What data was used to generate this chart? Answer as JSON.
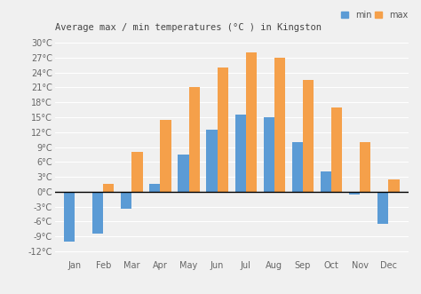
{
  "title": "Average max / min temperatures (°C ) in Kingston",
  "months": [
    "Jan",
    "Feb",
    "Mar",
    "Apr",
    "May",
    "Jun",
    "Jul",
    "Aug",
    "Sep",
    "Oct",
    "Nov",
    "Dec"
  ],
  "min_temps": [
    -10,
    -8.5,
    -3.5,
    1.5,
    7.5,
    12.5,
    15.5,
    15,
    10,
    4,
    -0.5,
    -6.5
  ],
  "max_temps": [
    0,
    1.5,
    8,
    14.5,
    21,
    25,
    28,
    27,
    22.5,
    17,
    10,
    2.5
  ],
  "min_color": "#5b9bd5",
  "max_color": "#f5a04a",
  "bg_color": "#f0f0f0",
  "grid_color": "#ffffff",
  "yticks": [
    -12,
    -9,
    -6,
    -3,
    0,
    3,
    6,
    9,
    12,
    15,
    18,
    21,
    24,
    27,
    30
  ],
  "ytick_labels": [
    "-12°C",
    "-9°C",
    "-6°C",
    "-3°C",
    "0°C",
    "3°C",
    "6°C",
    "9°C",
    "12°C",
    "15°C",
    "18°C",
    "21°C",
    "24°C",
    "27°C",
    "30°C"
  ],
  "ylim": [
    -13.5,
    31.5
  ],
  "bar_width": 0.38,
  "legend_min_label": "min",
  "legend_max_label": "max",
  "tick_fontsize": 7,
  "title_fontsize": 7.5
}
